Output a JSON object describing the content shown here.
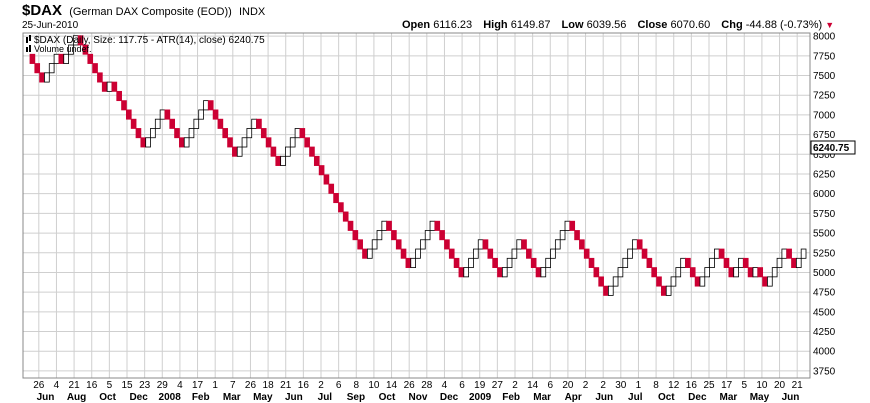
{
  "header": {
    "symbol": "$DAX",
    "name": "(German DAX Composite (EOD))",
    "exchange": "INDX",
    "date": "25-Jun-2010",
    "open_label": "Open",
    "open_value": "6116.23",
    "high_label": "High",
    "high_value": "6149.87",
    "low_label": "Low",
    "low_value": "6039.56",
    "close_label": "Close",
    "close_value": "6070.60",
    "chg_label": "Chg",
    "chg_value": "-44.88 (-0.73%)"
  },
  "legend": {
    "main": "$DAX (Daily, Size: 117.75 - ATR(14), close) 6240.75",
    "volume": "Volume undef."
  },
  "colors": {
    "up_fill": "#ffffff",
    "up_stroke": "#000000",
    "down_fill": "#cc0033",
    "grid": "#cfcfcf",
    "last_value_box": "#ffffff"
  },
  "chart_data": {
    "type": "renko",
    "box_size": 117.75,
    "last_value": "6240.75",
    "ylim": [
      3660,
      8040
    ],
    "y_ticks": [
      3750,
      4000,
      4250,
      4500,
      4750,
      5000,
      5250,
      5500,
      5750,
      6000,
      6250,
      6500,
      6750,
      7000,
      7250,
      7500,
      7750,
      8000
    ],
    "start_level": 7770,
    "runs": [
      -3,
      2,
      1,
      -1,
      2,
      1,
      -6,
      1,
      -7,
      3,
      1,
      -4,
      1,
      3,
      1,
      -6,
      1,
      2,
      1,
      -5,
      1,
      2,
      1,
      -14,
      3,
      1,
      -5,
      1,
      3,
      1,
      -6,
      1,
      2,
      1,
      -4,
      1,
      2,
      1,
      -4,
      1,
      4,
      1,
      -8,
      1,
      4,
      1,
      -6,
      1,
      2,
      1,
      -3,
      1,
      2,
      1,
      -3,
      1,
      1,
      -2,
      1,
      -2,
      1,
      2,
      1,
      -2,
      1,
      1
    ],
    "x_ticks": [
      "26",
      "4",
      "21",
      "16",
      "5",
      "15",
      "23",
      "29",
      "4",
      "17",
      "1",
      "7",
      "26",
      "18",
      "21",
      "16",
      "2",
      "6",
      "8",
      "10",
      "14",
      "26",
      "28",
      "4",
      "6",
      "19",
      "27",
      "2",
      "14",
      "6",
      "20",
      "2",
      "2",
      "30",
      "1",
      "8",
      "12",
      "16",
      "25",
      "17",
      "5",
      "10",
      "20",
      "21"
    ],
    "x_month_labels": [
      "Jun",
      "Aug",
      "Oct",
      "Dec",
      "2008",
      "Feb",
      "Mar",
      "May",
      "Jun",
      "Jul",
      "Sep",
      "Oct",
      "Nov",
      "Dec",
      "2009",
      "Feb",
      "Mar",
      "Apr",
      "Jun",
      "Jul",
      "Oct",
      "Dec",
      "Mar",
      "May",
      "Jun"
    ]
  }
}
